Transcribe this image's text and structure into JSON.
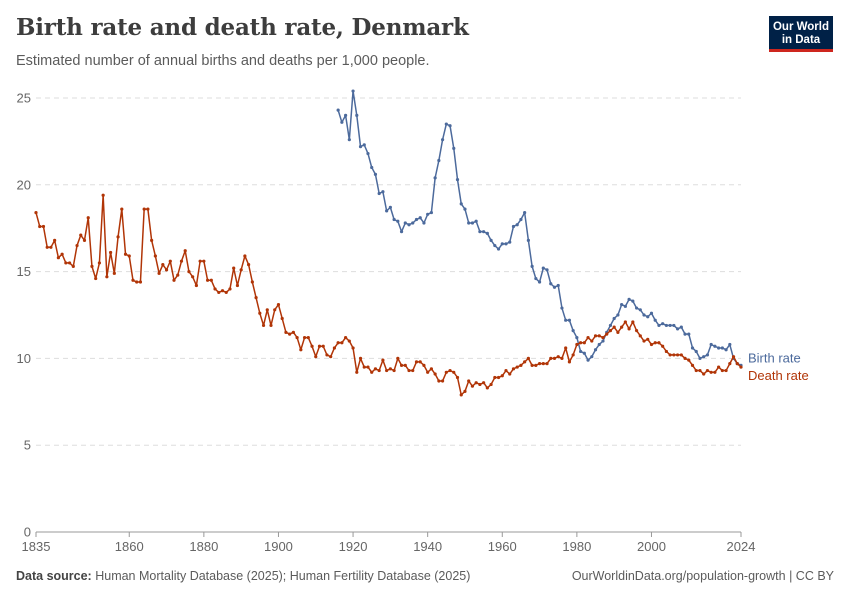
{
  "header": {
    "title": "Birth rate and death rate, Denmark",
    "subtitle": "Estimated number of annual births and deaths per 1,000 people."
  },
  "logo": {
    "line1": "Our World",
    "line2": "in Data"
  },
  "footer": {
    "source_label": "Data source:",
    "source_text": "Human Mortality Database (2025); Human Fertility Database (2025)",
    "link_text": "OurWorldinData.org/population-growth",
    "license_text": "| CC BY"
  },
  "chart_data": {
    "type": "line",
    "title": "Birth rate and death rate, Denmark",
    "subtitle": "Estimated number of annual births and deaths per 1,000 people.",
    "xlabel": "",
    "ylabel": "",
    "xlim": [
      1835,
      2024
    ],
    "ylim": [
      0,
      25
    ],
    "x_ticks": [
      1835,
      1860,
      1880,
      1900,
      1920,
      1940,
      1960,
      1980,
      2000,
      2024
    ],
    "y_ticks": [
      0,
      5,
      10,
      15,
      20,
      25
    ],
    "grid": "horizontal dashed",
    "legend": "inline labels at right end of lines",
    "series": [
      {
        "name": "Birth rate",
        "color": "#4c6a9c",
        "points": [
          [
            1916,
            24.3
          ],
          [
            1917,
            23.6
          ],
          [
            1918,
            24.0
          ],
          [
            1919,
            22.6
          ],
          [
            1920,
            25.4
          ],
          [
            1921,
            24.0
          ],
          [
            1922,
            22.2
          ],
          [
            1923,
            22.3
          ],
          [
            1924,
            21.8
          ],
          [
            1925,
            21.0
          ],
          [
            1926,
            20.6
          ],
          [
            1927,
            19.5
          ],
          [
            1928,
            19.6
          ],
          [
            1929,
            18.5
          ],
          [
            1930,
            18.7
          ],
          [
            1931,
            18.0
          ],
          [
            1932,
            17.9
          ],
          [
            1933,
            17.3
          ],
          [
            1934,
            17.8
          ],
          [
            1935,
            17.7
          ],
          [
            1936,
            17.8
          ],
          [
            1937,
            18.0
          ],
          [
            1938,
            18.1
          ],
          [
            1939,
            17.8
          ],
          [
            1940,
            18.3
          ],
          [
            1941,
            18.4
          ],
          [
            1942,
            20.4
          ],
          [
            1943,
            21.4
          ],
          [
            1944,
            22.6
          ],
          [
            1945,
            23.5
          ],
          [
            1946,
            23.4
          ],
          [
            1947,
            22.1
          ],
          [
            1948,
            20.3
          ],
          [
            1949,
            18.9
          ],
          [
            1950,
            18.6
          ],
          [
            1951,
            17.8
          ],
          [
            1952,
            17.8
          ],
          [
            1953,
            17.9
          ],
          [
            1954,
            17.3
          ],
          [
            1955,
            17.3
          ],
          [
            1956,
            17.2
          ],
          [
            1957,
            16.8
          ],
          [
            1958,
            16.5
          ],
          [
            1959,
            16.3
          ],
          [
            1960,
            16.6
          ],
          [
            1961,
            16.6
          ],
          [
            1962,
            16.7
          ],
          [
            1963,
            17.6
          ],
          [
            1964,
            17.7
          ],
          [
            1965,
            18.0
          ],
          [
            1966,
            18.4
          ],
          [
            1967,
            16.8
          ],
          [
            1968,
            15.3
          ],
          [
            1969,
            14.6
          ],
          [
            1970,
            14.4
          ],
          [
            1971,
            15.2
          ],
          [
            1972,
            15.1
          ],
          [
            1973,
            14.3
          ],
          [
            1974,
            14.1
          ],
          [
            1975,
            14.2
          ],
          [
            1976,
            12.9
          ],
          [
            1977,
            12.2
          ],
          [
            1978,
            12.2
          ],
          [
            1979,
            11.6
          ],
          [
            1980,
            11.2
          ],
          [
            1981,
            10.4
          ],
          [
            1982,
            10.3
          ],
          [
            1983,
            9.9
          ],
          [
            1984,
            10.1
          ],
          [
            1985,
            10.5
          ],
          [
            1986,
            10.8
          ],
          [
            1987,
            11.0
          ],
          [
            1988,
            11.5
          ],
          [
            1989,
            11.9
          ],
          [
            1990,
            12.3
          ],
          [
            1991,
            12.5
          ],
          [
            1992,
            13.1
          ],
          [
            1993,
            13.0
          ],
          [
            1994,
            13.4
          ],
          [
            1995,
            13.3
          ],
          [
            1996,
            12.9
          ],
          [
            1997,
            12.8
          ],
          [
            1998,
            12.5
          ],
          [
            1999,
            12.4
          ],
          [
            2000,
            12.6
          ],
          [
            2001,
            12.2
          ],
          [
            2002,
            11.9
          ],
          [
            2003,
            12.0
          ],
          [
            2004,
            11.9
          ],
          [
            2005,
            11.9
          ],
          [
            2006,
            11.9
          ],
          [
            2007,
            11.7
          ],
          [
            2008,
            11.8
          ],
          [
            2009,
            11.4
          ],
          [
            2010,
            11.4
          ],
          [
            2011,
            10.6
          ],
          [
            2012,
            10.4
          ],
          [
            2013,
            10.0
          ],
          [
            2014,
            10.1
          ],
          [
            2015,
            10.2
          ],
          [
            2016,
            10.8
          ],
          [
            2017,
            10.7
          ],
          [
            2018,
            10.6
          ],
          [
            2019,
            10.6
          ],
          [
            2020,
            10.5
          ],
          [
            2021,
            10.8
          ],
          [
            2022,
            10.0
          ],
          [
            2023,
            9.7
          ],
          [
            2024,
            9.6
          ]
        ]
      },
      {
        "name": "Death rate",
        "color": "#b13507",
        "points": [
          [
            1835,
            18.4
          ],
          [
            1836,
            17.6
          ],
          [
            1837,
            17.6
          ],
          [
            1838,
            16.4
          ],
          [
            1839,
            16.4
          ],
          [
            1840,
            16.8
          ],
          [
            1841,
            15.8
          ],
          [
            1842,
            16.0
          ],
          [
            1843,
            15.5
          ],
          [
            1844,
            15.5
          ],
          [
            1845,
            15.3
          ],
          [
            1846,
            16.5
          ],
          [
            1847,
            17.1
          ],
          [
            1848,
            16.8
          ],
          [
            1849,
            18.1
          ],
          [
            1850,
            15.3
          ],
          [
            1851,
            14.6
          ],
          [
            1852,
            15.5
          ],
          [
            1853,
            19.4
          ],
          [
            1854,
            14.7
          ],
          [
            1855,
            16.1
          ],
          [
            1856,
            14.9
          ],
          [
            1857,
            17.0
          ],
          [
            1858,
            18.6
          ],
          [
            1859,
            16.0
          ],
          [
            1860,
            15.9
          ],
          [
            1861,
            14.5
          ],
          [
            1862,
            14.4
          ],
          [
            1863,
            14.4
          ],
          [
            1864,
            18.6
          ],
          [
            1865,
            18.6
          ],
          [
            1866,
            16.8
          ],
          [
            1867,
            15.9
          ],
          [
            1868,
            14.9
          ],
          [
            1869,
            15.4
          ],
          [
            1870,
            15.1
          ],
          [
            1871,
            15.6
          ],
          [
            1872,
            14.5
          ],
          [
            1873,
            14.8
          ],
          [
            1874,
            15.6
          ],
          [
            1875,
            16.2
          ],
          [
            1876,
            15.0
          ],
          [
            1877,
            14.7
          ],
          [
            1878,
            14.2
          ],
          [
            1879,
            15.6
          ],
          [
            1880,
            15.6
          ],
          [
            1881,
            14.5
          ],
          [
            1882,
            14.5
          ],
          [
            1883,
            14.0
          ],
          [
            1884,
            13.8
          ],
          [
            1885,
            13.9
          ],
          [
            1886,
            13.8
          ],
          [
            1887,
            14.0
          ],
          [
            1888,
            15.2
          ],
          [
            1889,
            14.2
          ],
          [
            1890,
            15.1
          ],
          [
            1891,
            15.9
          ],
          [
            1892,
            15.4
          ],
          [
            1893,
            14.4
          ],
          [
            1894,
            13.5
          ],
          [
            1895,
            12.6
          ],
          [
            1896,
            11.9
          ],
          [
            1897,
            12.8
          ],
          [
            1898,
            11.9
          ],
          [
            1899,
            12.8
          ],
          [
            1900,
            13.1
          ],
          [
            1901,
            12.3
          ],
          [
            1902,
            11.5
          ],
          [
            1903,
            11.4
          ],
          [
            1904,
            11.5
          ],
          [
            1905,
            11.2
          ],
          [
            1906,
            10.5
          ],
          [
            1907,
            11.2
          ],
          [
            1908,
            11.2
          ],
          [
            1909,
            10.7
          ],
          [
            1910,
            10.1
          ],
          [
            1911,
            10.7
          ],
          [
            1912,
            10.7
          ],
          [
            1913,
            10.2
          ],
          [
            1914,
            10.1
          ],
          [
            1915,
            10.6
          ],
          [
            1916,
            10.9
          ],
          [
            1917,
            10.9
          ],
          [
            1918,
            11.2
          ],
          [
            1919,
            11.0
          ],
          [
            1920,
            10.6
          ],
          [
            1921,
            9.2
          ],
          [
            1922,
            10.0
          ],
          [
            1923,
            9.5
          ],
          [
            1924,
            9.5
          ],
          [
            1925,
            9.2
          ],
          [
            1926,
            9.4
          ],
          [
            1927,
            9.3
          ],
          [
            1928,
            9.9
          ],
          [
            1929,
            9.3
          ],
          [
            1930,
            9.4
          ],
          [
            1931,
            9.3
          ],
          [
            1932,
            10.0
          ],
          [
            1933,
            9.6
          ],
          [
            1934,
            9.6
          ],
          [
            1935,
            9.3
          ],
          [
            1936,
            9.3
          ],
          [
            1937,
            9.8
          ],
          [
            1938,
            9.8
          ],
          [
            1939,
            9.6
          ],
          [
            1940,
            9.2
          ],
          [
            1941,
            9.4
          ],
          [
            1942,
            9.1
          ],
          [
            1943,
            8.7
          ],
          [
            1944,
            8.7
          ],
          [
            1945,
            9.2
          ],
          [
            1946,
            9.3
          ],
          [
            1947,
            9.2
          ],
          [
            1948,
            8.9
          ],
          [
            1949,
            7.9
          ],
          [
            1950,
            8.1
          ],
          [
            1951,
            8.7
          ],
          [
            1952,
            8.4
          ],
          [
            1953,
            8.6
          ],
          [
            1954,
            8.5
          ],
          [
            1955,
            8.6
          ],
          [
            1956,
            8.3
          ],
          [
            1957,
            8.5
          ],
          [
            1958,
            8.9
          ],
          [
            1959,
            8.9
          ],
          [
            1960,
            9.0
          ],
          [
            1961,
            9.3
          ],
          [
            1962,
            9.1
          ],
          [
            1963,
            9.4
          ],
          [
            1964,
            9.5
          ],
          [
            1965,
            9.6
          ],
          [
            1966,
            9.8
          ],
          [
            1967,
            10.0
          ],
          [
            1968,
            9.6
          ],
          [
            1969,
            9.6
          ],
          [
            1970,
            9.7
          ],
          [
            1971,
            9.7
          ],
          [
            1972,
            9.7
          ],
          [
            1973,
            10.0
          ],
          [
            1974,
            10.0
          ],
          [
            1975,
            10.1
          ],
          [
            1976,
            10.0
          ],
          [
            1977,
            10.6
          ],
          [
            1978,
            9.8
          ],
          [
            1979,
            10.2
          ],
          [
            1980,
            10.8
          ],
          [
            1981,
            10.9
          ],
          [
            1982,
            10.9
          ],
          [
            1983,
            11.2
          ],
          [
            1984,
            11.0
          ],
          [
            1985,
            11.3
          ],
          [
            1986,
            11.3
          ],
          [
            1987,
            11.2
          ],
          [
            1988,
            11.4
          ],
          [
            1989,
            11.6
          ],
          [
            1990,
            11.8
          ],
          [
            1991,
            11.5
          ],
          [
            1992,
            11.8
          ],
          [
            1993,
            12.1
          ],
          [
            1994,
            11.7
          ],
          [
            1995,
            12.1
          ],
          [
            1996,
            11.6
          ],
          [
            1997,
            11.3
          ],
          [
            1998,
            11.0
          ],
          [
            1999,
            11.1
          ],
          [
            2000,
            10.8
          ],
          [
            2001,
            10.9
          ],
          [
            2002,
            10.9
          ],
          [
            2003,
            10.7
          ],
          [
            2004,
            10.4
          ],
          [
            2005,
            10.2
          ],
          [
            2006,
            10.2
          ],
          [
            2007,
            10.2
          ],
          [
            2008,
            10.2
          ],
          [
            2009,
            10.0
          ],
          [
            2010,
            9.9
          ],
          [
            2011,
            9.6
          ],
          [
            2012,
            9.3
          ],
          [
            2013,
            9.3
          ],
          [
            2014,
            9.1
          ],
          [
            2015,
            9.3
          ],
          [
            2016,
            9.2
          ],
          [
            2017,
            9.2
          ],
          [
            2018,
            9.5
          ],
          [
            2019,
            9.3
          ],
          [
            2020,
            9.3
          ],
          [
            2021,
            9.7
          ],
          [
            2022,
            10.1
          ],
          [
            2023,
            9.7
          ],
          [
            2024,
            9.5
          ]
        ]
      }
    ]
  }
}
